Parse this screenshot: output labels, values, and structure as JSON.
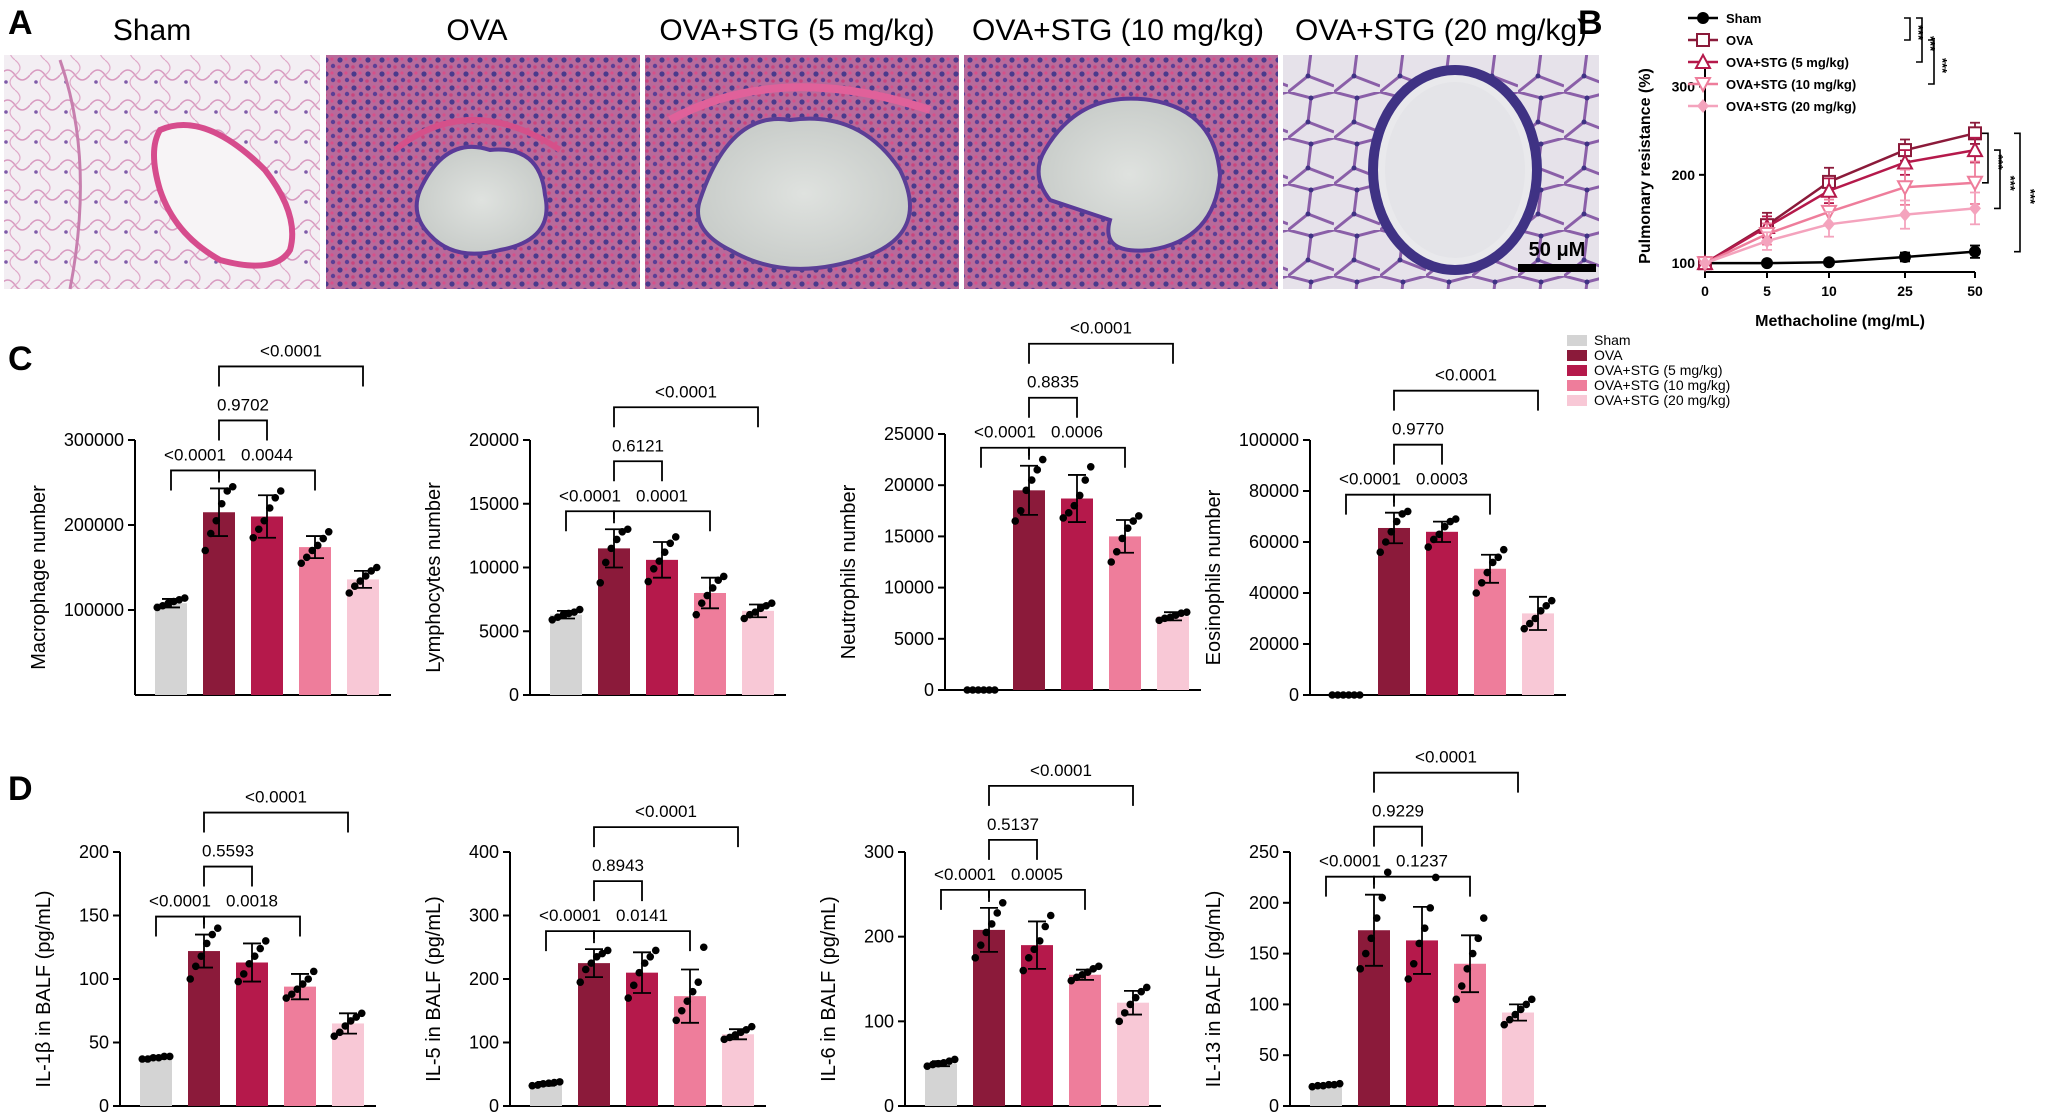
{
  "panel_labels": {
    "a": "A",
    "b": "B",
    "c": "C",
    "d": "D"
  },
  "colors": {
    "Sham": "#d4d4d4",
    "OVA": "#8b1a3a",
    "OVA+STG (5 mg/kg)": "#b5194b",
    "OVA+STG (10 mg/kg)": "#ee7d9b",
    "OVA+STG (20 mg/kg)": "#f8c8d6"
  },
  "histology": {
    "titles": [
      "Sham",
      "OVA",
      "OVA+STG (5 mg/kg)",
      "OVA+STG (10 mg/kg)",
      "OVA+STG (20 mg/kg)"
    ],
    "scale_bar": "50 μM"
  },
  "legend_c": [
    "Sham",
    "OVA",
    "OVA+STG (5 mg/kg)",
    "OVA+STG (10 mg/kg)",
    "OVA+STG (20 mg/kg)"
  ],
  "chart_data": [
    {
      "id": "B",
      "type": "line",
      "xlabel": "Methacholine (mg/mL)",
      "ylabel": "Pulmonary resistance (%)",
      "x": [
        0,
        5,
        10,
        25,
        50
      ],
      "x_ticks": [
        "0",
        "5",
        "10",
        "25",
        "50"
      ],
      "y_ticks": [
        100,
        200,
        300
      ],
      "ylim": [
        90,
        330
      ],
      "series": [
        {
          "name": "Sham",
          "marker": "circle-filled",
          "color": "#000000",
          "values": [
            100,
            100,
            101,
            107,
            113
          ],
          "errors": [
            0,
            2,
            2,
            5,
            7
          ]
        },
        {
          "name": "OVA",
          "marker": "square-open",
          "color": "#8b1a3a",
          "values": [
            100,
            143,
            192,
            228,
            247
          ],
          "errors": [
            0,
            14,
            16,
            12,
            12
          ]
        },
        {
          "name": "OVA+STG (5 mg/kg)",
          "marker": "triangle-up-open",
          "color": "#b5194b",
          "values": [
            100,
            141,
            182,
            214,
            228
          ],
          "errors": [
            0,
            12,
            14,
            14,
            14
          ]
        },
        {
          "name": "OVA+STG (10 mg/kg)",
          "marker": "triangle-down-open",
          "color": "#ee7d9b",
          "values": [
            100,
            133,
            158,
            186,
            191
          ],
          "errors": [
            0,
            12,
            14,
            20,
            24
          ]
        },
        {
          "name": "OVA+STG (20 mg/kg)",
          "marker": "diamond-filled",
          "color": "#f4a3bd",
          "values": [
            100,
            125,
            144,
            155,
            162
          ],
          "errors": [
            0,
            10,
            14,
            16,
            18
          ]
        }
      ],
      "significance_legend": [
        "***",
        "***",
        "***"
      ],
      "significance_right": [
        "***",
        "***",
        "***"
      ]
    },
    {
      "id": "C1",
      "type": "bar",
      "ylabel": "Macrophage number",
      "categories": [
        "Sham",
        "OVA",
        "OVA+STG (5 mg/kg)",
        "OVA+STG (10 mg/kg)",
        "OVA+STG (20 mg/kg)"
      ],
      "values": [
        108000,
        215000,
        210000,
        174000,
        136000
      ],
      "errors": [
        5000,
        28000,
        25000,
        13000,
        10000
      ],
      "points": [
        [
          103000,
          105000,
          108000,
          110000,
          112000,
          114000
        ],
        [
          170000,
          190000,
          205000,
          225000,
          240000,
          245000
        ],
        [
          185000,
          195000,
          205000,
          220000,
          232000,
          240000
        ],
        [
          155000,
          162000,
          170000,
          176000,
          184000,
          192000
        ],
        [
          120000,
          128000,
          134000,
          140000,
          146000,
          150000
        ]
      ],
      "y_ticks": [
        100000,
        200000,
        300000
      ],
      "ylim": [
        0,
        300000
      ],
      "comparisons": [
        {
          "from": 0,
          "to": 1,
          "label": "<0.0001"
        },
        {
          "from": 1,
          "to": 3,
          "label": "0.0044"
        },
        {
          "from": 1,
          "to": 2,
          "label": "0.9702"
        },
        {
          "from": 1,
          "to": 4,
          "label": "<0.0001"
        }
      ]
    },
    {
      "id": "C2",
      "type": "bar",
      "ylabel": "Lymphocytes number",
      "categories": [
        "Sham",
        "OVA",
        "OVA+STG (5 mg/kg)",
        "OVA+STG (10 mg/kg)",
        "OVA+STG (20 mg/kg)"
      ],
      "values": [
        6300,
        11500,
        10600,
        8000,
        6600
      ],
      "errors": [
        300,
        1500,
        1400,
        1200,
        500
      ],
      "points": [
        [
          5900,
          6100,
          6300,
          6400,
          6500,
          6700
        ],
        [
          8800,
          10400,
          11500,
          12200,
          12800,
          13000
        ],
        [
          8900,
          9900,
          10500,
          11200,
          11900,
          12400
        ],
        [
          6300,
          7200,
          7800,
          8400,
          9000,
          9300
        ],
        [
          6000,
          6300,
          6500,
          6800,
          7000,
          7200
        ]
      ],
      "y_ticks": [
        0,
        5000,
        10000,
        15000,
        20000
      ],
      "ylim": [
        0,
        20000
      ],
      "comparisons": [
        {
          "from": 0,
          "to": 1,
          "label": "<0.0001"
        },
        {
          "from": 1,
          "to": 3,
          "label": "0.0001"
        },
        {
          "from": 1,
          "to": 2,
          "label": "0.6121"
        },
        {
          "from": 1,
          "to": 4,
          "label": "<0.0001"
        }
      ]
    },
    {
      "id": "C3",
      "type": "bar",
      "ylabel": "Neutrophils number",
      "categories": [
        "Sham",
        "OVA",
        "OVA+STG (5 mg/kg)",
        "OVA+STG (10 mg/kg)",
        "OVA+STG (20 mg/kg)"
      ],
      "values": [
        0,
        19500,
        18700,
        15000,
        7200
      ],
      "errors": [
        0,
        2400,
        2300,
        1600,
        400
      ],
      "points": [
        [
          0,
          0,
          0,
          0,
          0,
          0
        ],
        [
          16500,
          17500,
          19500,
          20500,
          21500,
          22500
        ],
        [
          16800,
          17300,
          18000,
          19000,
          20500,
          21800
        ],
        [
          12500,
          13500,
          14800,
          15800,
          16500,
          17000
        ],
        [
          6800,
          7000,
          7100,
          7300,
          7500,
          7600
        ]
      ],
      "y_ticks": [
        0,
        5000,
        10000,
        15000,
        20000,
        25000
      ],
      "ylim": [
        0,
        25000
      ],
      "comparisons": [
        {
          "from": 0,
          "to": 1,
          "label": "<0.0001"
        },
        {
          "from": 1,
          "to": 3,
          "label": "0.0006"
        },
        {
          "from": 1,
          "to": 2,
          "label": "0.8835"
        },
        {
          "from": 1,
          "to": 4,
          "label": "<0.0001"
        }
      ]
    },
    {
      "id": "C4",
      "type": "bar",
      "ylabel": "Eosinophils number",
      "categories": [
        "Sham",
        "OVA",
        "OVA+STG (5 mg/kg)",
        "OVA+STG (10 mg/kg)",
        "OVA+STG (20 mg/kg)"
      ],
      "values": [
        0,
        65500,
        64000,
        49500,
        32000
      ],
      "errors": [
        0,
        6000,
        4000,
        5500,
        6500
      ],
      "points": [
        [
          0,
          0,
          0,
          0,
          0,
          0
        ],
        [
          56000,
          60000,
          64000,
          68000,
          71000,
          72000
        ],
        [
          58000,
          61000,
          63000,
          66000,
          68000,
          69000
        ],
        [
          40000,
          44000,
          48000,
          52000,
          54000,
          57000
        ],
        [
          26000,
          28000,
          30000,
          33000,
          35000,
          37000
        ]
      ],
      "y_ticks": [
        0,
        20000,
        40000,
        60000,
        80000,
        100000
      ],
      "ylim": [
        0,
        100000
      ],
      "comparisons": [
        {
          "from": 0,
          "to": 1,
          "label": "<0.0001"
        },
        {
          "from": 1,
          "to": 3,
          "label": "0.0003"
        },
        {
          "from": 1,
          "to": 2,
          "label": "0.9770"
        },
        {
          "from": 1,
          "to": 4,
          "label": "<0.0001"
        }
      ]
    },
    {
      "id": "D1",
      "type": "bar",
      "ylabel": "IL-1β in BALF (pg/mL)",
      "categories": [
        "Sham",
        "OVA",
        "OVA+STG (5 mg/kg)",
        "OVA+STG (10 mg/kg)",
        "OVA+STG (20 mg/kg)"
      ],
      "values": [
        38,
        122,
        113,
        94,
        65
      ],
      "errors": [
        1,
        13,
        15,
        10,
        8
      ],
      "points": [
        [
          37,
          37,
          38,
          38,
          39,
          39
        ],
        [
          100,
          110,
          118,
          128,
          135,
          140
        ],
        [
          98,
          104,
          112,
          118,
          124,
          130
        ],
        [
          85,
          88,
          92,
          96,
          100,
          106
        ],
        [
          55,
          58,
          63,
          67,
          70,
          73
        ]
      ],
      "y_ticks": [
        0,
        50,
        100,
        150,
        200
      ],
      "ylim": [
        0,
        200
      ],
      "comparisons": [
        {
          "from": 0,
          "to": 1,
          "label": "<0.0001"
        },
        {
          "from": 1,
          "to": 3,
          "label": "0.0018"
        },
        {
          "from": 1,
          "to": 2,
          "label": "0.5593"
        },
        {
          "from": 1,
          "to": 4,
          "label": "<0.0001"
        }
      ]
    },
    {
      "id": "D2",
      "type": "bar",
      "ylabel": "IL-5 in BALF (pg/mL)",
      "categories": [
        "Sham",
        "OVA",
        "OVA+STG (5 mg/kg)",
        "OVA+STG (10 mg/kg)",
        "OVA+STG (20 mg/kg)"
      ],
      "values": [
        35,
        225,
        210,
        173,
        113
      ],
      "errors": [
        3,
        22,
        32,
        42,
        8
      ],
      "points": [
        [
          32,
          33,
          35,
          36,
          37,
          38
        ],
        [
          195,
          215,
          225,
          235,
          240,
          245
        ],
        [
          170,
          190,
          210,
          225,
          235,
          245
        ],
        [
          135,
          150,
          165,
          180,
          195,
          250
        ],
        [
          105,
          108,
          112,
          116,
          120,
          125
        ]
      ],
      "y_ticks": [
        0,
        100,
        200,
        300,
        400
      ],
      "ylim": [
        0,
        400
      ],
      "comparisons": [
        {
          "from": 0,
          "to": 1,
          "label": "<0.0001"
        },
        {
          "from": 1,
          "to": 3,
          "label": "0.0141"
        },
        {
          "from": 1,
          "to": 2,
          "label": "0.8943"
        },
        {
          "from": 1,
          "to": 4,
          "label": "<0.0001"
        }
      ]
    },
    {
      "id": "D3",
      "type": "bar",
      "ylabel": "IL-6 in BALF (pg/mL)",
      "categories": [
        "Sham",
        "OVA",
        "OVA+STG (5 mg/kg)",
        "OVA+STG (10 mg/kg)",
        "OVA+STG (20 mg/kg)"
      ],
      "values": [
        50,
        208,
        190,
        155,
        122
      ],
      "errors": [
        3,
        26,
        28,
        6,
        14
      ],
      "points": [
        [
          47,
          49,
          50,
          51,
          53,
          55
        ],
        [
          175,
          190,
          205,
          215,
          228,
          240
        ],
        [
          160,
          175,
          185,
          195,
          212,
          225
        ],
        [
          148,
          152,
          155,
          158,
          162,
          165
        ],
        [
          100,
          110,
          120,
          128,
          135,
          140
        ]
      ],
      "y_ticks": [
        0,
        100,
        200,
        300
      ],
      "ylim": [
        0,
        300
      ],
      "comparisons": [
        {
          "from": 0,
          "to": 1,
          "label": "<0.0001"
        },
        {
          "from": 1,
          "to": 3,
          "label": "0.0005"
        },
        {
          "from": 1,
          "to": 2,
          "label": "0.5137"
        },
        {
          "from": 1,
          "to": 4,
          "label": "<0.0001"
        }
      ]
    },
    {
      "id": "D4",
      "type": "bar",
      "ylabel": "IL-13 in BALF (pg/mL)",
      "categories": [
        "Sham",
        "OVA",
        "OVA+STG (5 mg/kg)",
        "OVA+STG (10 mg/kg)",
        "OVA+STG (20 mg/kg)"
      ],
      "values": [
        20,
        173,
        163,
        140,
        92
      ],
      "errors": [
        1,
        35,
        33,
        28,
        8
      ],
      "points": [
        [
          19,
          20,
          20,
          21,
          21,
          22
        ],
        [
          135,
          150,
          165,
          185,
          205,
          230
        ],
        [
          125,
          140,
          160,
          175,
          195,
          225
        ],
        [
          105,
          118,
          135,
          150,
          165,
          185
        ],
        [
          80,
          85,
          90,
          95,
          100,
          105
        ]
      ],
      "y_ticks": [
        0,
        50,
        100,
        150,
        200,
        250
      ],
      "ylim": [
        0,
        250
      ],
      "comparisons": [
        {
          "from": 0,
          "to": 1,
          "label": "<0.0001"
        },
        {
          "from": 1,
          "to": 3,
          "label": "0.1237"
        },
        {
          "from": 1,
          "to": 2,
          "label": "0.9229"
        },
        {
          "from": 1,
          "to": 4,
          "label": "<0.0001"
        }
      ]
    }
  ]
}
